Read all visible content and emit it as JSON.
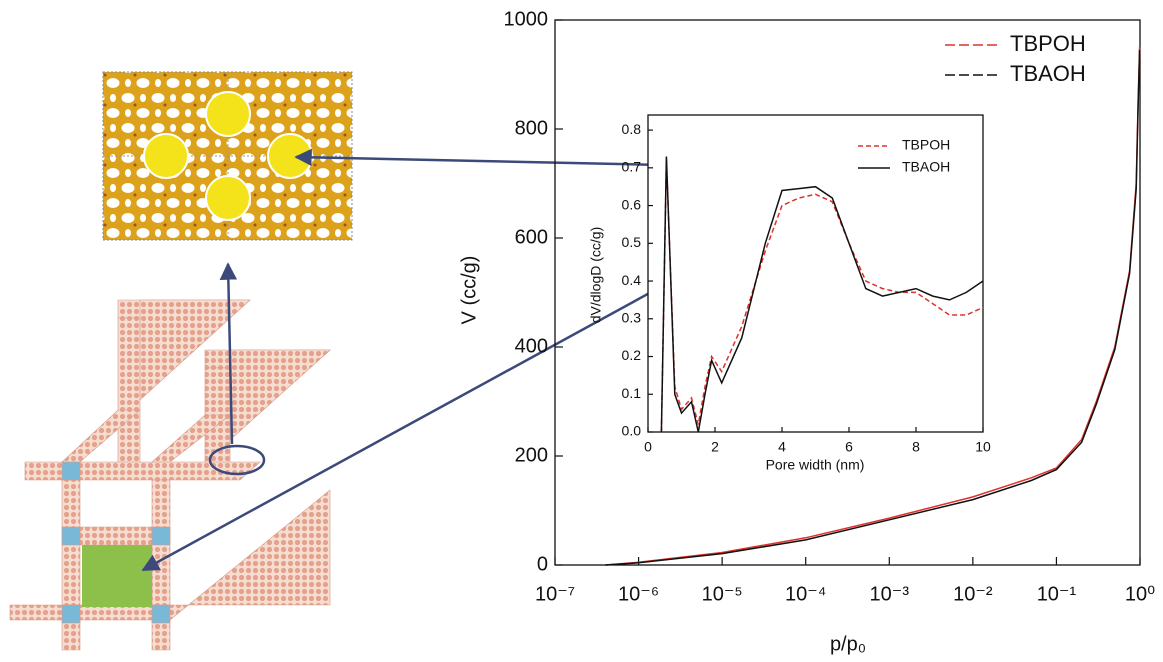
{
  "chart_data": [
    {
      "type": "line",
      "xlabel": "p/p₀",
      "ylabel": "V (cc/g)",
      "xscale": "log",
      "xlim": [
        1e-07,
        1
      ],
      "ylim": [
        0,
        1000
      ],
      "xticks": [
        {
          "value": 1e-07,
          "label": "10⁻⁷"
        },
        {
          "value": 1e-06,
          "label": "10⁻⁶"
        },
        {
          "value": 1e-05,
          "label": "10⁻⁵"
        },
        {
          "value": 0.0001,
          "label": "10⁻⁴"
        },
        {
          "value": 0.001,
          "label": "10⁻³"
        },
        {
          "value": 0.01,
          "label": "10⁻²"
        },
        {
          "value": 0.1,
          "label": "10⁻¹"
        },
        {
          "value": 1,
          "label": "10⁰"
        }
      ],
      "yticks": [
        0,
        200,
        400,
        600,
        800,
        1000
      ],
      "legend": "upper right",
      "x": [
        4e-07,
        1e-06,
        1e-05,
        0.0001,
        0.001,
        0.01,
        0.05,
        0.1,
        0.2,
        0.3,
        0.5,
        0.75,
        0.9,
        0.95,
        0.99
      ],
      "series": [
        {
          "name": "TBPOH",
          "color": "#e0302a",
          "values": [
            0,
            5,
            23,
            50,
            86,
            125,
            160,
            178,
            230,
            300,
            400,
            540,
            700,
            850,
            950
          ]
        },
        {
          "name": "TBAOH",
          "color": "#111111",
          "values": [
            0,
            4,
            21,
            46,
            83,
            120,
            155,
            175,
            225,
            295,
            395,
            535,
            690,
            840,
            945
          ]
        }
      ]
    },
    {
      "type": "line",
      "xlabel": "Pore width (nm)",
      "ylabel": "dV/dlogD (cc/g)",
      "xlim": [
        0,
        10
      ],
      "ylim": [
        0,
        0.84
      ],
      "xticks": [
        0,
        2,
        4,
        6,
        8,
        10
      ],
      "yticks": [
        {
          "value": 0,
          "label": "0.0"
        },
        0.1,
        0.2,
        0.3,
        0.4,
        0.5,
        0.6,
        0.7,
        0.8
      ],
      "legend": "upper right",
      "x": [
        0.4,
        0.55,
        0.8,
        1.0,
        1.3,
        1.5,
        1.7,
        1.9,
        2.2,
        2.8,
        3.5,
        4.0,
        4.5,
        5.0,
        5.5,
        6.0,
        6.5,
        7.0,
        7.5,
        8.0,
        8.5,
        9.0,
        9.5,
        10.0
      ],
      "series": [
        {
          "name": "TBPOH",
          "color": "#e0302a",
          "linestyle": "dashed",
          "values": [
            0.0,
            0.72,
            0.12,
            0.06,
            0.09,
            0.02,
            0.12,
            0.2,
            0.16,
            0.28,
            0.48,
            0.6,
            0.62,
            0.63,
            0.61,
            0.5,
            0.4,
            0.38,
            0.37,
            0.37,
            0.34,
            0.31,
            0.31,
            0.33
          ]
        },
        {
          "name": "TBAOH",
          "color": "#111111",
          "linestyle": "solid",
          "values": [
            0.0,
            0.73,
            0.1,
            0.05,
            0.08,
            0.0,
            0.1,
            0.19,
            0.13,
            0.25,
            0.5,
            0.64,
            0.645,
            0.65,
            0.62,
            0.5,
            0.38,
            0.36,
            0.37,
            0.38,
            0.36,
            0.35,
            0.37,
            0.4
          ]
        }
      ]
    }
  ]
}
